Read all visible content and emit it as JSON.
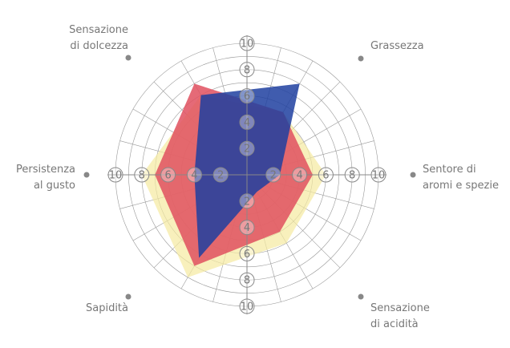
{
  "chart_data": {
    "type": "radar",
    "categories": [
      "Sensazione\ndi dolcezza",
      "Grassezza",
      "Sentore di\naromi e spezie",
      "Sensazione\ndi acidità",
      "Sapidità",
      "Persistenza\nal gusto"
    ],
    "series": [
      {
        "color": "#f5eaa0",
        "values": [
          7,
          5.5,
          6,
          6,
          9,
          8
        ]
      },
      {
        "color": "#e0505f",
        "values": [
          8,
          5.5,
          5,
          5,
          8,
          7
        ]
      },
      {
        "color": "#1f3fa0",
        "values": [
          7,
          8,
          2.5,
          1.5,
          7.3,
          4
        ]
      }
    ],
    "rlim": [
      0,
      10
    ],
    "rticks": [
      2,
      4,
      6,
      8,
      10
    ],
    "grid": true
  }
}
